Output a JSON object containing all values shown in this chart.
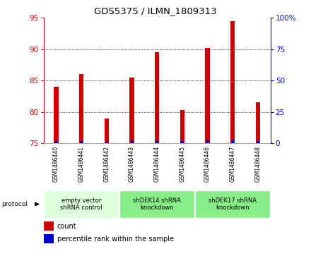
{
  "title": "GDS5375 / ILMN_1809313",
  "samples": [
    "GSM1486440",
    "GSM1486441",
    "GSM1486442",
    "GSM1486443",
    "GSM1486444",
    "GSM1486445",
    "GSM1486446",
    "GSM1486447",
    "GSM1486448"
  ],
  "count_values": [
    84.0,
    86.0,
    79.0,
    85.5,
    89.5,
    80.3,
    90.2,
    94.5,
    81.5
  ],
  "percentile_values": [
    1.8,
    1.8,
    1.2,
    3.0,
    2.2,
    1.8,
    2.2,
    3.0,
    1.8
  ],
  "ylim_left": [
    75,
    95
  ],
  "ylim_right": [
    0,
    100
  ],
  "yticks_left": [
    75,
    80,
    85,
    90,
    95
  ],
  "yticks_right": [
    0,
    25,
    50,
    75,
    100
  ],
  "ytick_labels_right": [
    "0",
    "25",
    "50",
    "75",
    "100%"
  ],
  "left_color": "#cc0000",
  "right_color": "#0000cc",
  "bar_base": 75,
  "bar_width": 0.18,
  "pct_bar_width": 0.1,
  "groups": [
    {
      "label": "empty vector\nshRNA control",
      "start": 0,
      "end": 3,
      "color": "#ddffdd"
    },
    {
      "label": "shDEK14 shRNA\nknockdown",
      "start": 3,
      "end": 6,
      "color": "#88ee88"
    },
    {
      "label": "shDEK17 shRNA\nknockdown",
      "start": 6,
      "end": 9,
      "color": "#88ee88"
    }
  ],
  "legend_count_label": "count",
  "legend_pct_label": "percentile rank within the sample",
  "protocol_label": "protocol",
  "plot_bg_color": "#ffffff",
  "tick_area_color": "#cccccc",
  "grid_ticks": [
    80,
    85,
    90
  ]
}
